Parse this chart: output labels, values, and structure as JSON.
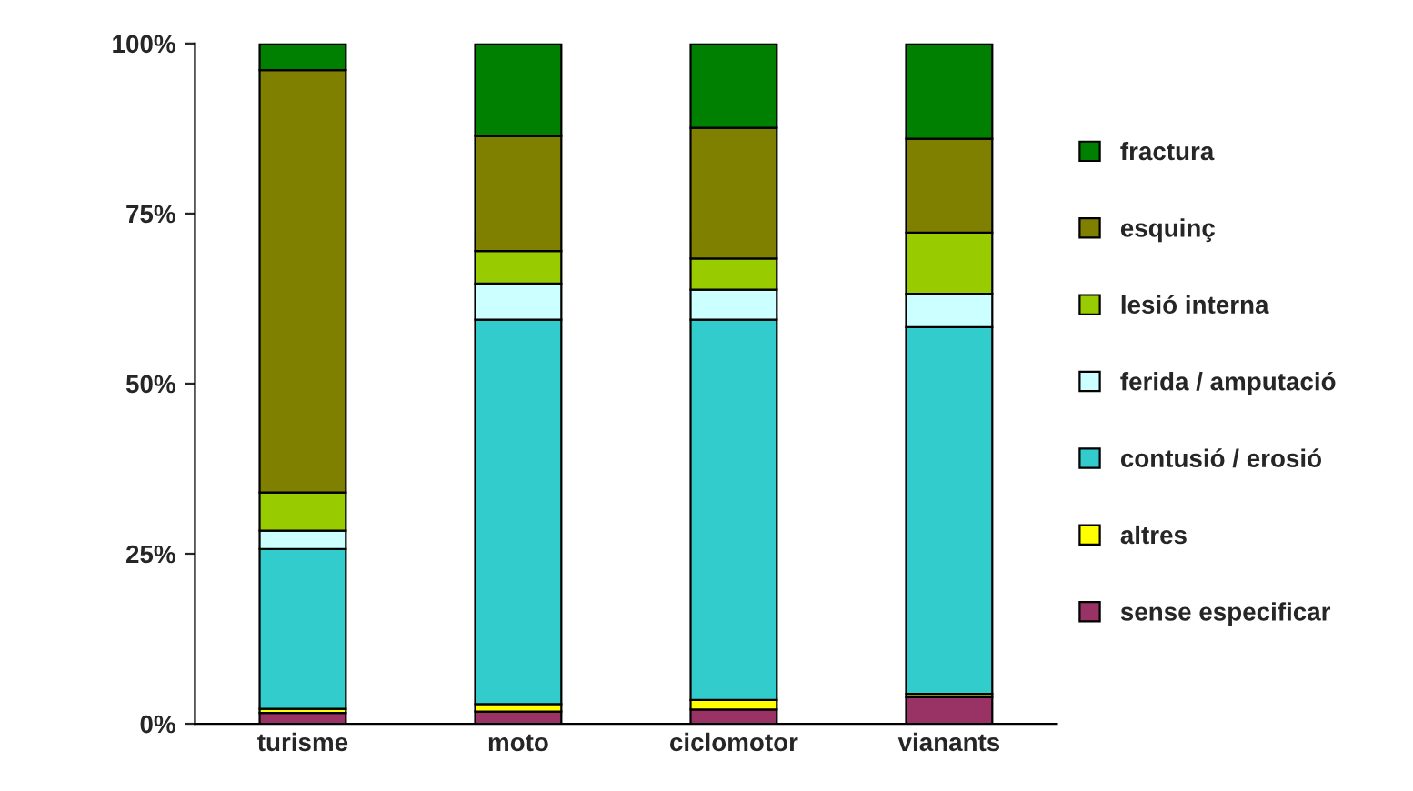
{
  "chart_data": {
    "type": "bar",
    "stacked": true,
    "categories": [
      "turisme",
      "moto",
      "ciclomotor",
      "vianants"
    ],
    "series": [
      {
        "name": "sense especificar",
        "color": "#993366",
        "values": [
          1.6,
          1.8,
          2.1,
          3.9
        ]
      },
      {
        "name": "altres",
        "color": "#ffff00",
        "values": [
          0.6,
          1.1,
          1.4,
          0.5
        ]
      },
      {
        "name": "contusió / erosió",
        "color": "#33cccc",
        "values": [
          23.5,
          56.5,
          55.9,
          53.9
        ]
      },
      {
        "name": "ferida / amputació",
        "color": "#ccffff",
        "values": [
          2.7,
          5.3,
          4.4,
          4.9
        ]
      },
      {
        "name": "lesió interna",
        "color": "#99cc00",
        "values": [
          5.6,
          4.8,
          4.6,
          9.0
        ]
      },
      {
        "name": "esquinç",
        "color": "#808000",
        "values": [
          62.1,
          16.9,
          19.2,
          13.8
        ]
      },
      {
        "name": "fractura",
        "color": "#008000",
        "values": [
          3.9,
          13.6,
          12.4,
          14.0
        ]
      }
    ],
    "ylim": [
      0,
      100
    ],
    "yticks": [
      {
        "value": 0,
        "label": "0%"
      },
      {
        "value": 25,
        "label": "25%"
      },
      {
        "value": 50,
        "label": "50%"
      },
      {
        "value": 75,
        "label": "75%"
      },
      {
        "value": 100,
        "label": "100%"
      }
    ],
    "grid": false,
    "legend": "right"
  }
}
